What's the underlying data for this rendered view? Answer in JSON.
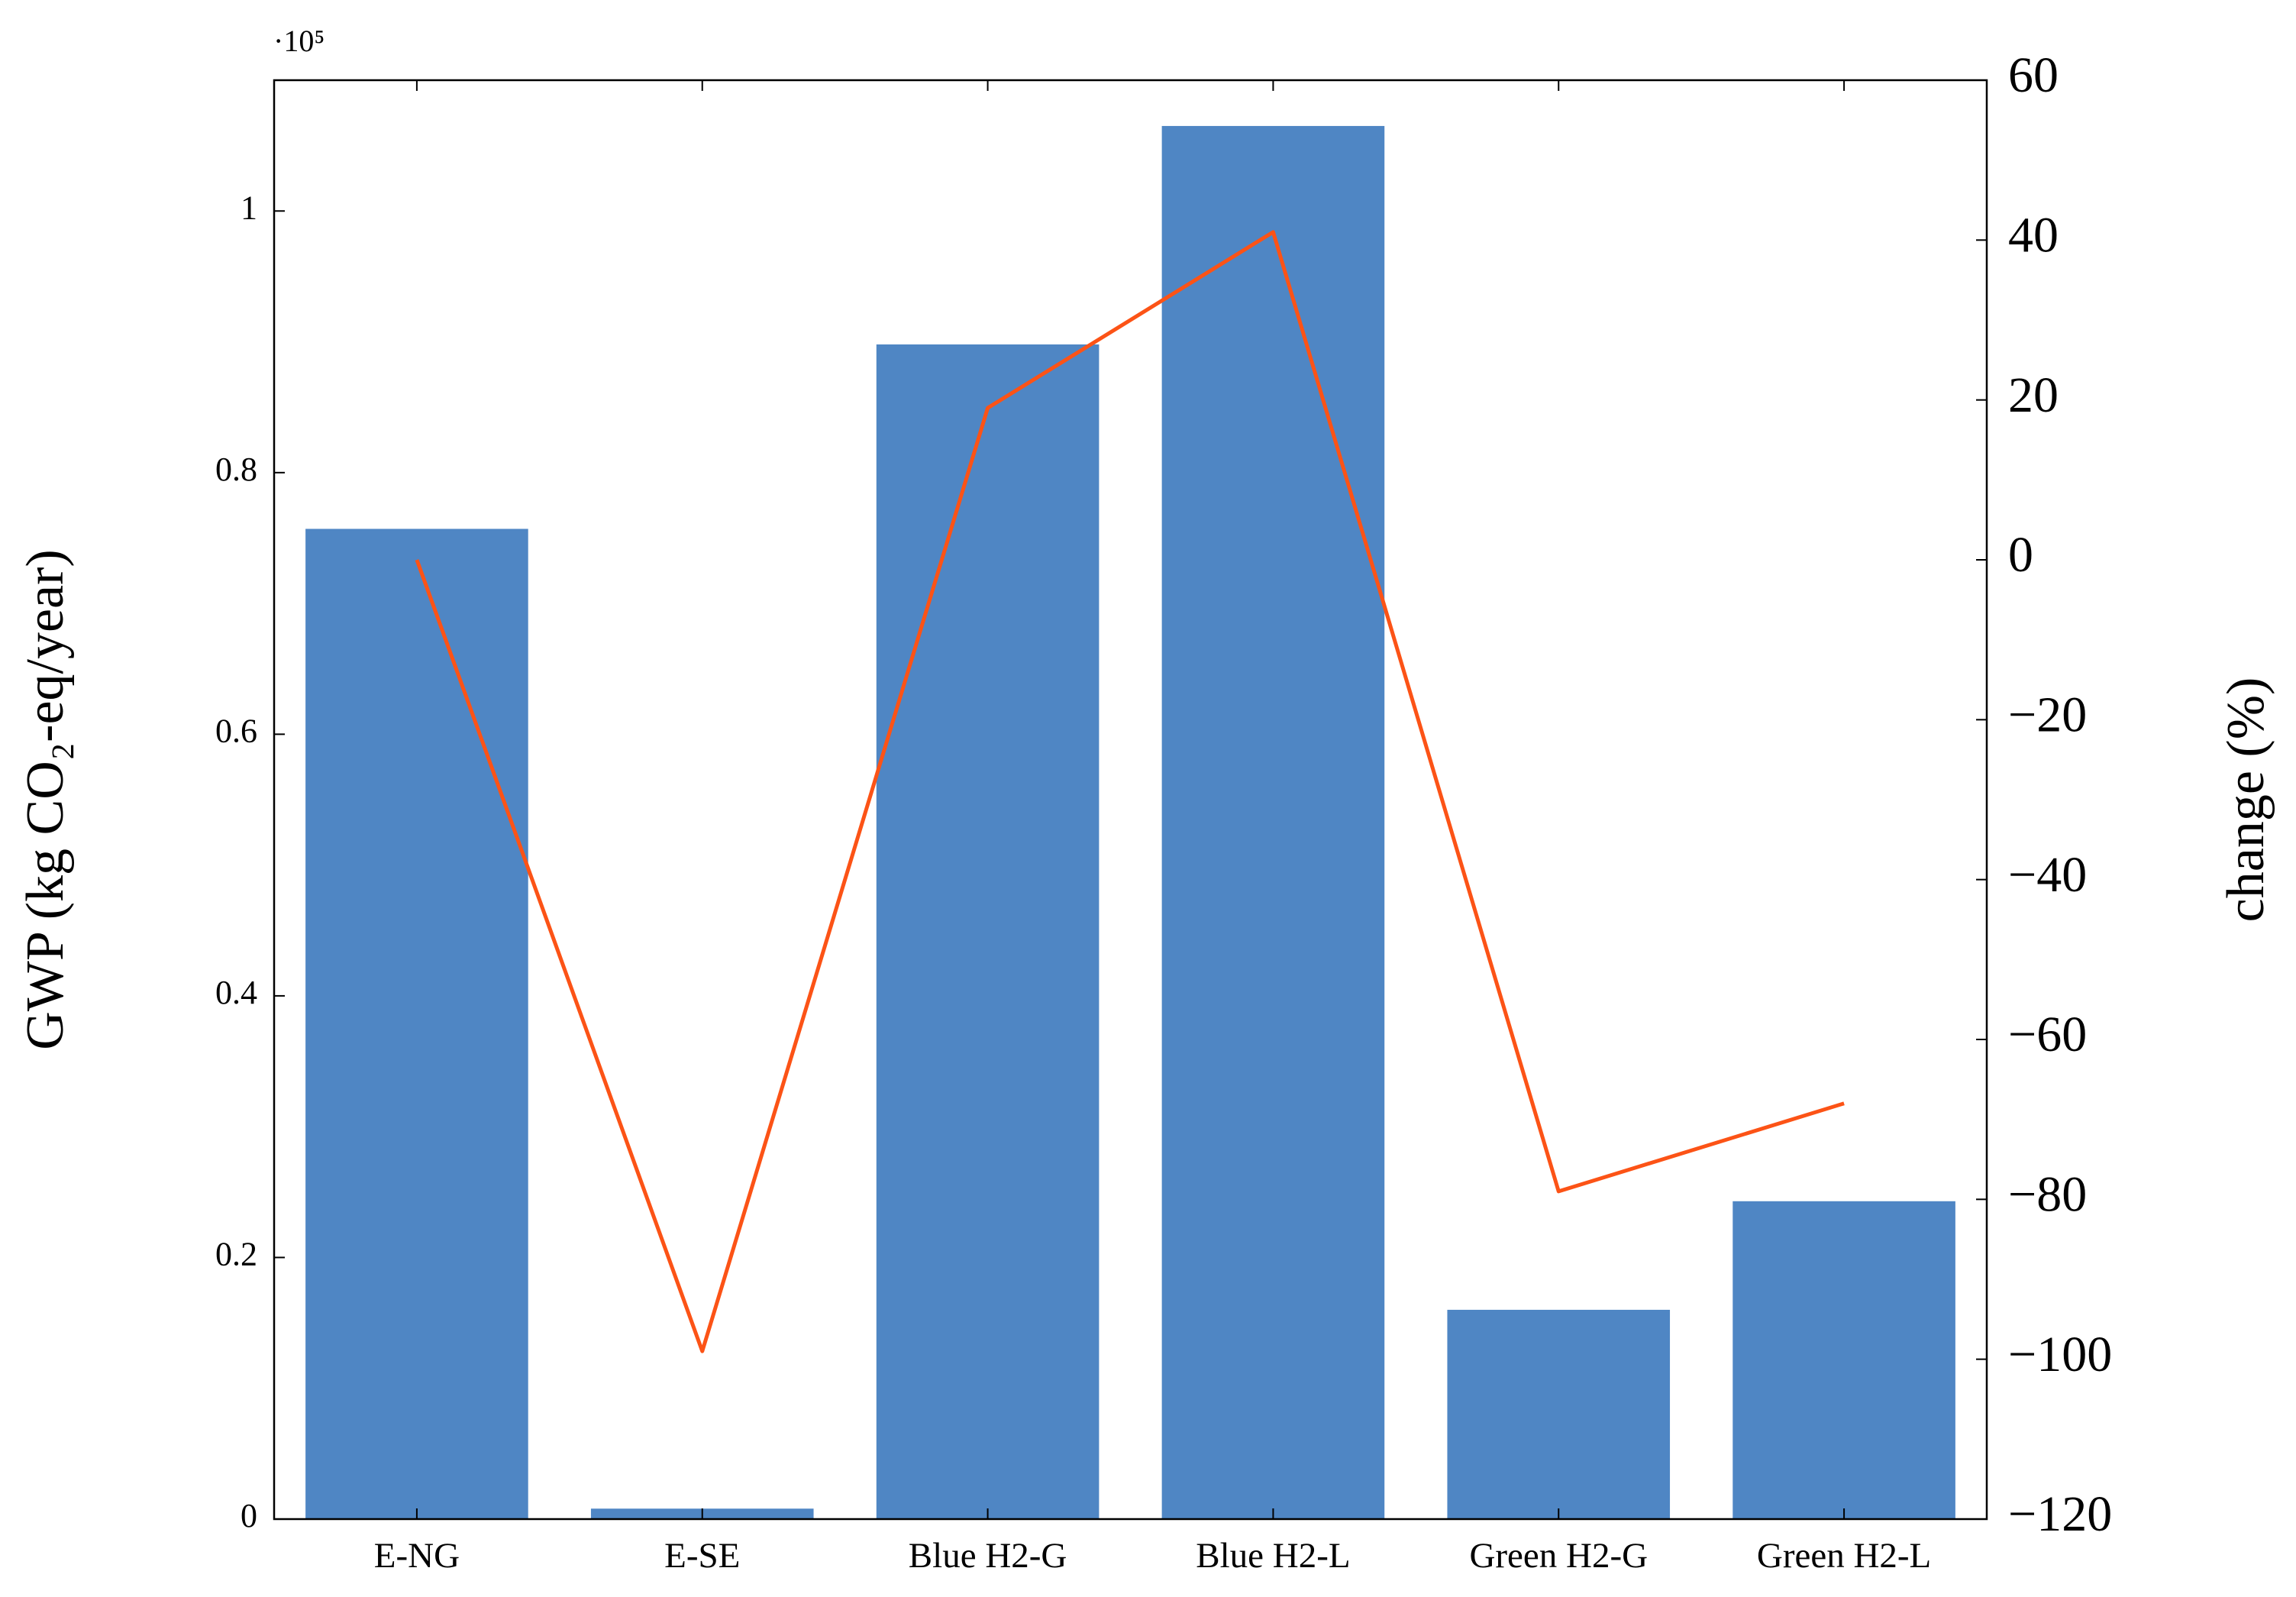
{
  "chart_data": {
    "type": "bar_line",
    "categories": [
      "E-NG",
      "E-SE",
      "Blue H2-G",
      "Blue H2-L",
      "Green H2-G",
      "Green H2-L"
    ],
    "series": [
      {
        "name": "GWP",
        "type": "bar",
        "color": "#4f86c4",
        "values": [
          0.757,
          0.008,
          0.898,
          1.065,
          0.16,
          0.243
        ]
      },
      {
        "name": "change",
        "type": "line",
        "axis": "y2",
        "color": "#fc5316",
        "values": [
          0,
          -99,
          19,
          41,
          -79,
          -68
        ]
      }
    ],
    "ylabel": "GWP (kg CO₂-eq/year)",
    "y_multiplier": "·10⁵",
    "ylim": [
      0,
      1.1
    ],
    "yticks": [
      0,
      0.2,
      0.4,
      0.6,
      0.8,
      1
    ],
    "y2label": "change (%)",
    "y2lim": [
      -120,
      60
    ],
    "y2ticks": [
      {
        "value": -120,
        "label": "−120"
      },
      {
        "value": -100,
        "label": "−100"
      },
      {
        "value": -80,
        "label": "−80"
      },
      {
        "value": -60,
        "label": "−60"
      },
      {
        "value": -40,
        "label": "−40"
      },
      {
        "value": -20,
        "label": "−20"
      },
      0,
      20,
      40,
      60
    ]
  }
}
